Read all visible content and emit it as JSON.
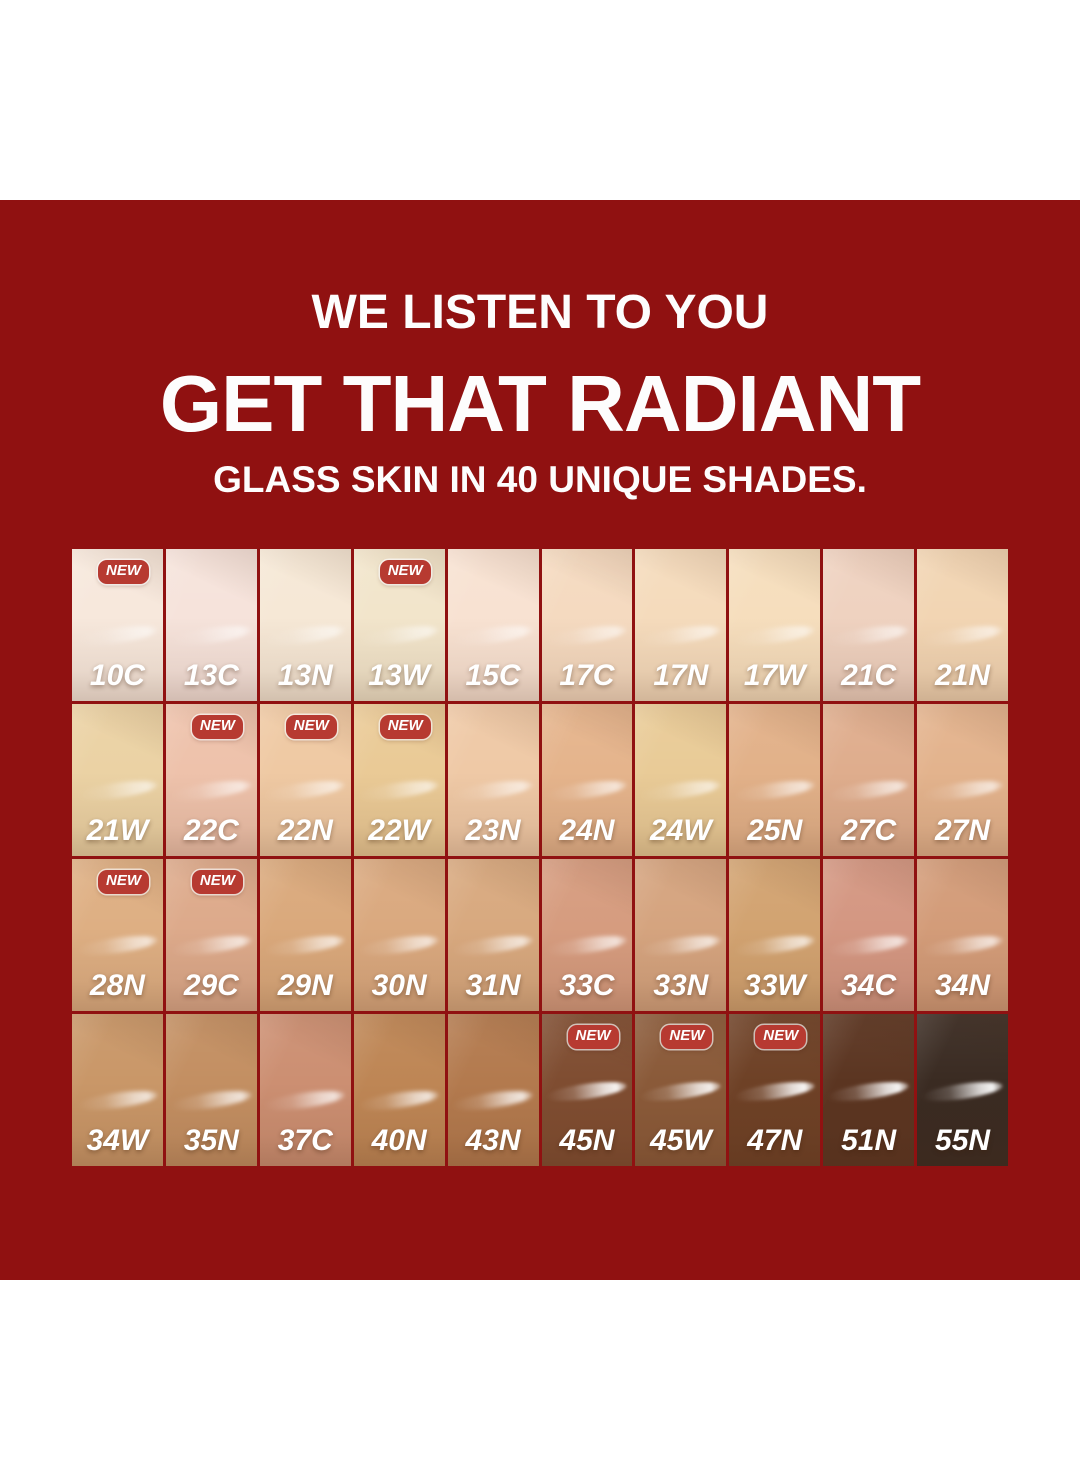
{
  "header": {
    "line1": "WE LISTEN TO YOU",
    "line2": "GET THAT RADIANT",
    "line3": "GLASS SKIN IN 40 UNIQUE SHADES."
  },
  "badge_label": "NEW",
  "shade_count": 40,
  "colors": {
    "background_red": "#901111",
    "badge_red": "#B73A31",
    "headline_white": "#FDFDFD"
  },
  "grid": {
    "rows": 4,
    "columns": 10,
    "swatches": [
      {
        "label": "10C",
        "color": "#F7E8DC",
        "new": true
      },
      {
        "label": "13C",
        "color": "#F6E3DB",
        "new": false
      },
      {
        "label": "13N",
        "color": "#F6E8D6",
        "new": false
      },
      {
        "label": "13W",
        "color": "#F2E5CB",
        "new": true
      },
      {
        "label": "15C",
        "color": "#F8E2D2",
        "new": false
      },
      {
        "label": "17C",
        "color": "#F5DAC0",
        "new": false
      },
      {
        "label": "17N",
        "color": "#F5DBBC",
        "new": false
      },
      {
        "label": "17W",
        "color": "#F6DEBD",
        "new": false
      },
      {
        "label": "21C",
        "color": "#EFD2C0",
        "new": false
      },
      {
        "label": "21N",
        "color": "#F2D5B3",
        "new": false
      },
      {
        "label": "21W",
        "color": "#EBD2A4",
        "new": false
      },
      {
        "label": "22C",
        "color": "#EEC2AB",
        "new": true
      },
      {
        "label": "22N",
        "color": "#EFC9A3",
        "new": true
      },
      {
        "label": "22W",
        "color": "#EACA96",
        "new": true
      },
      {
        "label": "23N",
        "color": "#EFC9A6",
        "new": false
      },
      {
        "label": "24N",
        "color": "#E5B48C",
        "new": false
      },
      {
        "label": "24W",
        "color": "#E9CB97",
        "new": false
      },
      {
        "label": "25N",
        "color": "#E2B189",
        "new": false
      },
      {
        "label": "27C",
        "color": "#DFAD8D",
        "new": false
      },
      {
        "label": "27N",
        "color": "#E3B38D",
        "new": false
      },
      {
        "label": "28N",
        "color": "#DEAF83",
        "new": true
      },
      {
        "label": "29C",
        "color": "#DDAA8B",
        "new": true
      },
      {
        "label": "29N",
        "color": "#DAA97C",
        "new": false
      },
      {
        "label": "30N",
        "color": "#DAA97F",
        "new": false
      },
      {
        "label": "31N",
        "color": "#D8A97F",
        "new": false
      },
      {
        "label": "33C",
        "color": "#D69C7F",
        "new": false
      },
      {
        "label": "33N",
        "color": "#D5A47F",
        "new": false
      },
      {
        "label": "33W",
        "color": "#D2A371",
        "new": false
      },
      {
        "label": "34C",
        "color": "#D49782",
        "new": false
      },
      {
        "label": "34N",
        "color": "#D39C79",
        "new": false
      },
      {
        "label": "34W",
        "color": "#C99768",
        "new": false
      },
      {
        "label": "35N",
        "color": "#C38F62",
        "new": false
      },
      {
        "label": "37C",
        "color": "#CC8F72",
        "new": false
      },
      {
        "label": "40N",
        "color": "#BE8655",
        "new": false
      },
      {
        "label": "43N",
        "color": "#B37A4E",
        "new": false
      },
      {
        "label": "45N",
        "color": "#7F4D31",
        "new": true
      },
      {
        "label": "45W",
        "color": "#8A5A39",
        "new": true
      },
      {
        "label": "47N",
        "color": "#6E4126",
        "new": true
      },
      {
        "label": "51N",
        "color": "#5B3521",
        "new": false
      },
      {
        "label": "55N",
        "color": "#3A2B22",
        "new": false
      }
    ]
  }
}
